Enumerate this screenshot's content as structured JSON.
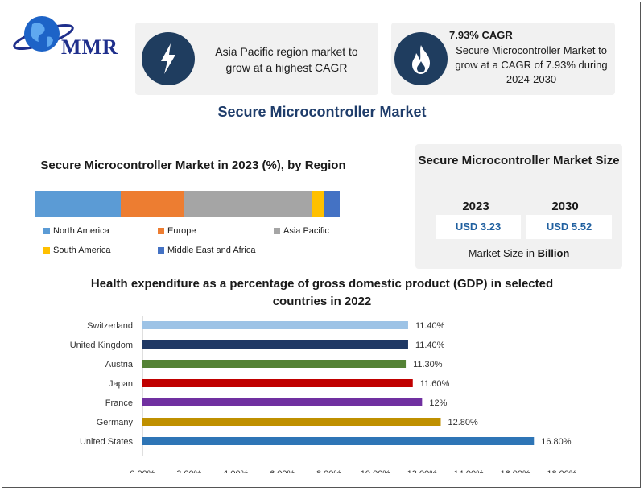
{
  "brand": {
    "logo_text": "MMR"
  },
  "highlights": [
    {
      "icon": "lightning-icon",
      "text": "Asia Pacific region market to grow at a highest CAGR"
    },
    {
      "icon": "flame-icon",
      "heading": "7.93% CAGR",
      "text": "Secure Microcontroller Market to grow at a CAGR of 7.93% during 2024-2030"
    }
  ],
  "main_title": "Secure Microcontroller Market",
  "region_chart": {
    "title": "Secure Microcontroller Market in 2023 (%), by Region",
    "series": [
      {
        "name": "North America",
        "color": "#5b9bd5"
      },
      {
        "name": "Europe",
        "color": "#ed7d31"
      },
      {
        "name": "Asia Pacific",
        "color": "#a5a5a5"
      },
      {
        "name": "South America",
        "color": "#ffc000"
      },
      {
        "name": "Middle East and Africa",
        "color": "#4472c4"
      }
    ],
    "shares": [
      28,
      21,
      42,
      4,
      5
    ]
  },
  "market_size": {
    "title": "Secure Microcontroller Market Size",
    "year_a": "2023",
    "year_b": "2030",
    "value_a": "USD 3.23",
    "value_b": "USD 5.52",
    "note_prefix": "Market Size in",
    "note_unit": "Billion"
  },
  "chart_data": {
    "type": "bar",
    "orientation": "horizontal",
    "title": "Health expenditure as a percentage of gross domestic product (GDP) in selected countries in 2022",
    "categories": [
      "Switzerland",
      "United Kingdom",
      "Austria",
      "Japan",
      "France",
      "Germany",
      "United States"
    ],
    "values": [
      11.4,
      11.4,
      11.3,
      11.6,
      12,
      12.8,
      16.8
    ],
    "data_labels": [
      "11.40%",
      "11.40%",
      "11.30%",
      "11.60%",
      "12%",
      "12.80%",
      "16.80%"
    ],
    "colors": [
      "#9dc3e6",
      "#1f3864",
      "#548235",
      "#c00000",
      "#7030a0",
      "#bf9000",
      "#2e75b6"
    ],
    "xlim": [
      0,
      18
    ],
    "xticks": [
      "0.00%",
      "2.00%",
      "4.00%",
      "6.00%",
      "8.00%",
      "10.00%",
      "12.00%",
      "14.00%",
      "16.00%",
      "18.00%"
    ],
    "grid": false
  }
}
